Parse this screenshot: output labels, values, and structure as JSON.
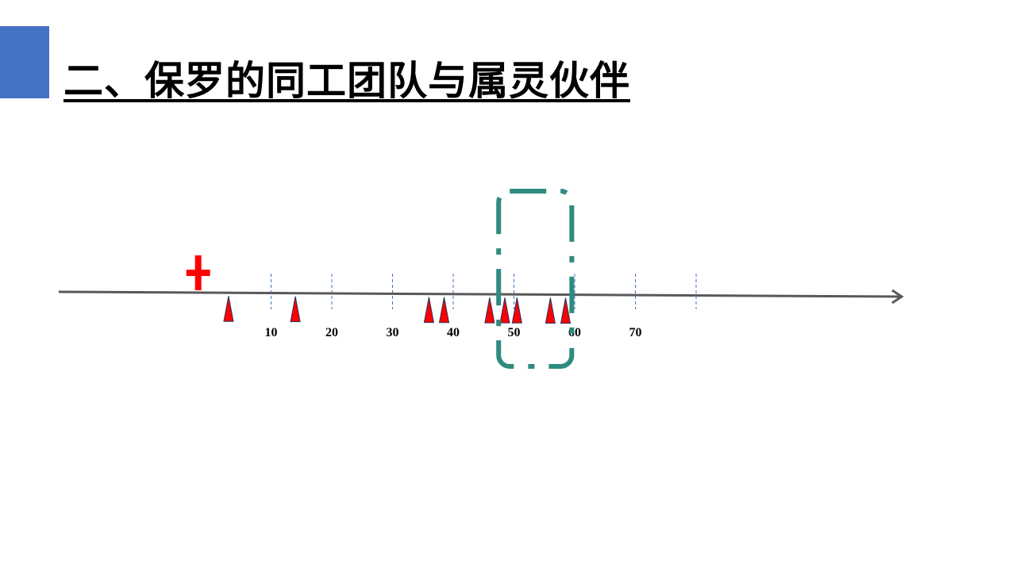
{
  "slide": {
    "title": "二、保罗的同工团队与属灵伙伴"
  },
  "timeline": {
    "tick_labels": [
      "10",
      "20",
      "30",
      "40",
      "50",
      "60",
      "70"
    ],
    "gridlines_at": [
      10,
      20,
      30,
      40,
      50,
      60,
      70,
      80
    ],
    "cross_marker_at": -2,
    "triangle_markers_at": [
      3,
      14,
      36,
      38.5,
      46,
      48.5,
      50.5,
      56,
      58.5
    ],
    "highlight_range": [
      48,
      59
    ],
    "colors": {
      "axis": "#595959",
      "gridline": "#4472c4",
      "marker": "#ff0000",
      "highlight": "#2e8b80",
      "accent": "#4472c4"
    },
    "icons": {
      "cross": "red-cross-icon",
      "triangle": "red-triangle-icon",
      "arrow": "arrowhead-icon"
    }
  }
}
